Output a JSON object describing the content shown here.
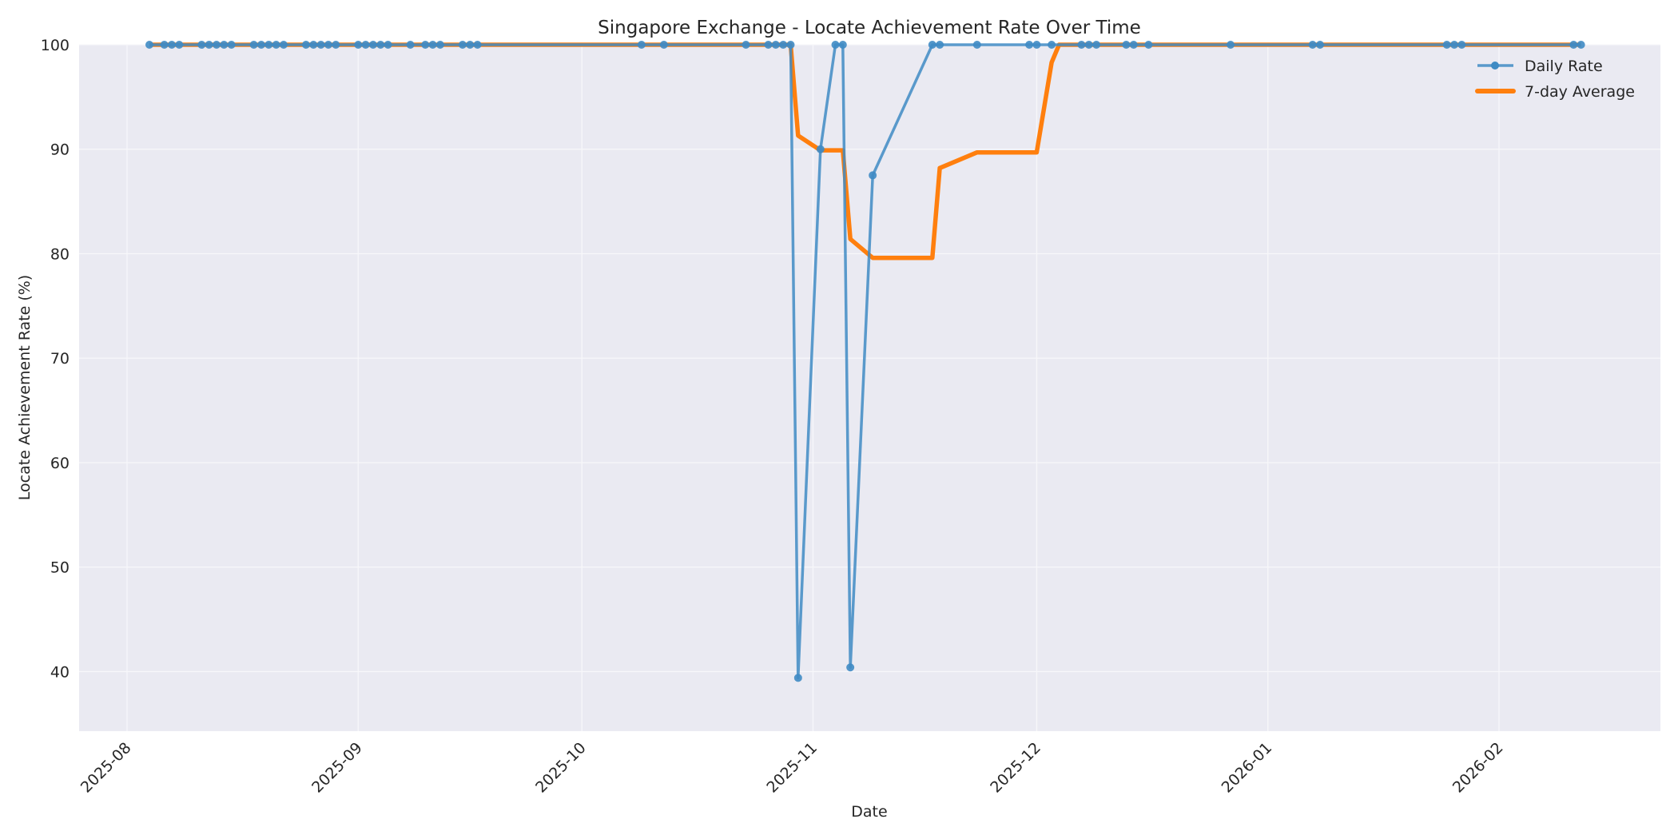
{
  "chart_data": {
    "type": "line",
    "title": "Singapore Exchange - Locate Achievement Rate Over Time",
    "xlabel": "Date",
    "ylabel": "Locate Achievement Rate (%)",
    "ylim": [
      34.3,
      100
    ],
    "yticks": [
      40,
      50,
      60,
      70,
      80,
      90,
      100
    ],
    "xticks": [
      "2025-08",
      "2025-09",
      "2025-10",
      "2025-11",
      "2025-12",
      "2026-01",
      "2026-02"
    ],
    "grid": true,
    "legend_position": "upper right",
    "colors": {
      "daily": "#3f8bc4",
      "avg": "#ff7f0e",
      "plot_bg": "#eaeaf2",
      "grid": "#f5f5f8"
    },
    "series": [
      {
        "name": "Daily Rate",
        "points": [
          [
            "2025-08-04",
            100
          ],
          [
            "2025-08-06",
            100
          ],
          [
            "2025-08-07",
            100
          ],
          [
            "2025-08-08",
            100
          ],
          [
            "2025-08-11",
            100
          ],
          [
            "2025-08-12",
            100
          ],
          [
            "2025-08-13",
            100
          ],
          [
            "2025-08-14",
            100
          ],
          [
            "2025-08-15",
            100
          ],
          [
            "2025-08-18",
            100
          ],
          [
            "2025-08-19",
            100
          ],
          [
            "2025-08-20",
            100
          ],
          [
            "2025-08-21",
            100
          ],
          [
            "2025-08-22",
            100
          ],
          [
            "2025-08-25",
            100
          ],
          [
            "2025-08-26",
            100
          ],
          [
            "2025-08-27",
            100
          ],
          [
            "2025-08-28",
            100
          ],
          [
            "2025-08-29",
            100
          ],
          [
            "2025-09-01",
            100
          ],
          [
            "2025-09-02",
            100
          ],
          [
            "2025-09-03",
            100
          ],
          [
            "2025-09-04",
            100
          ],
          [
            "2025-09-05",
            100
          ],
          [
            "2025-09-08",
            100
          ],
          [
            "2025-09-10",
            100
          ],
          [
            "2025-09-11",
            100
          ],
          [
            "2025-09-12",
            100
          ],
          [
            "2025-09-15",
            100
          ],
          [
            "2025-09-16",
            100
          ],
          [
            "2025-09-17",
            100
          ],
          [
            "2025-10-09",
            100
          ],
          [
            "2025-10-12",
            100
          ],
          [
            "2025-10-23",
            100
          ],
          [
            "2025-10-26",
            100
          ],
          [
            "2025-10-27",
            100
          ],
          [
            "2025-10-28",
            100
          ],
          [
            "2025-10-29",
            100
          ],
          [
            "2025-10-30",
            39.4
          ],
          [
            "2025-11-02",
            90
          ],
          [
            "2025-11-04",
            100
          ],
          [
            "2025-11-05",
            100
          ],
          [
            "2025-11-06",
            40.4
          ],
          [
            "2025-11-09",
            87.5
          ],
          [
            "2025-11-17",
            100
          ],
          [
            "2025-11-18",
            100
          ],
          [
            "2025-11-23",
            100
          ],
          [
            "2025-11-30",
            100
          ],
          [
            "2025-12-01",
            100
          ],
          [
            "2025-12-03",
            100
          ],
          [
            "2025-12-07",
            100
          ],
          [
            "2025-12-08",
            100
          ],
          [
            "2025-12-09",
            100
          ],
          [
            "2025-12-13",
            100
          ],
          [
            "2025-12-14",
            100
          ],
          [
            "2025-12-16",
            100
          ],
          [
            "2025-12-27",
            100
          ],
          [
            "2026-01-07",
            100
          ],
          [
            "2026-01-08",
            100
          ],
          [
            "2026-01-25",
            100
          ],
          [
            "2026-01-26",
            100
          ],
          [
            "2026-01-27",
            100
          ],
          [
            "2026-02-11",
            100
          ],
          [
            "2026-02-12",
            100
          ]
        ]
      },
      {
        "name": "7-day Average",
        "points": [
          [
            "2025-08-04",
            100
          ],
          [
            "2025-10-29",
            100
          ],
          [
            "2025-10-30",
            91.3
          ],
          [
            "2025-11-02",
            89.9
          ],
          [
            "2025-11-05",
            89.9
          ],
          [
            "2025-11-06",
            81.4
          ],
          [
            "2025-11-09",
            79.6
          ],
          [
            "2025-11-17",
            79.6
          ],
          [
            "2025-11-18",
            88.2
          ],
          [
            "2025-11-23",
            89.7
          ],
          [
            "2025-12-01",
            89.7
          ],
          [
            "2025-12-03",
            98.3
          ],
          [
            "2025-12-04",
            100
          ],
          [
            "2026-02-12",
            100
          ]
        ]
      }
    ]
  },
  "legend": {
    "daily_label": "Daily Rate",
    "avg_label": "7-day Average"
  }
}
